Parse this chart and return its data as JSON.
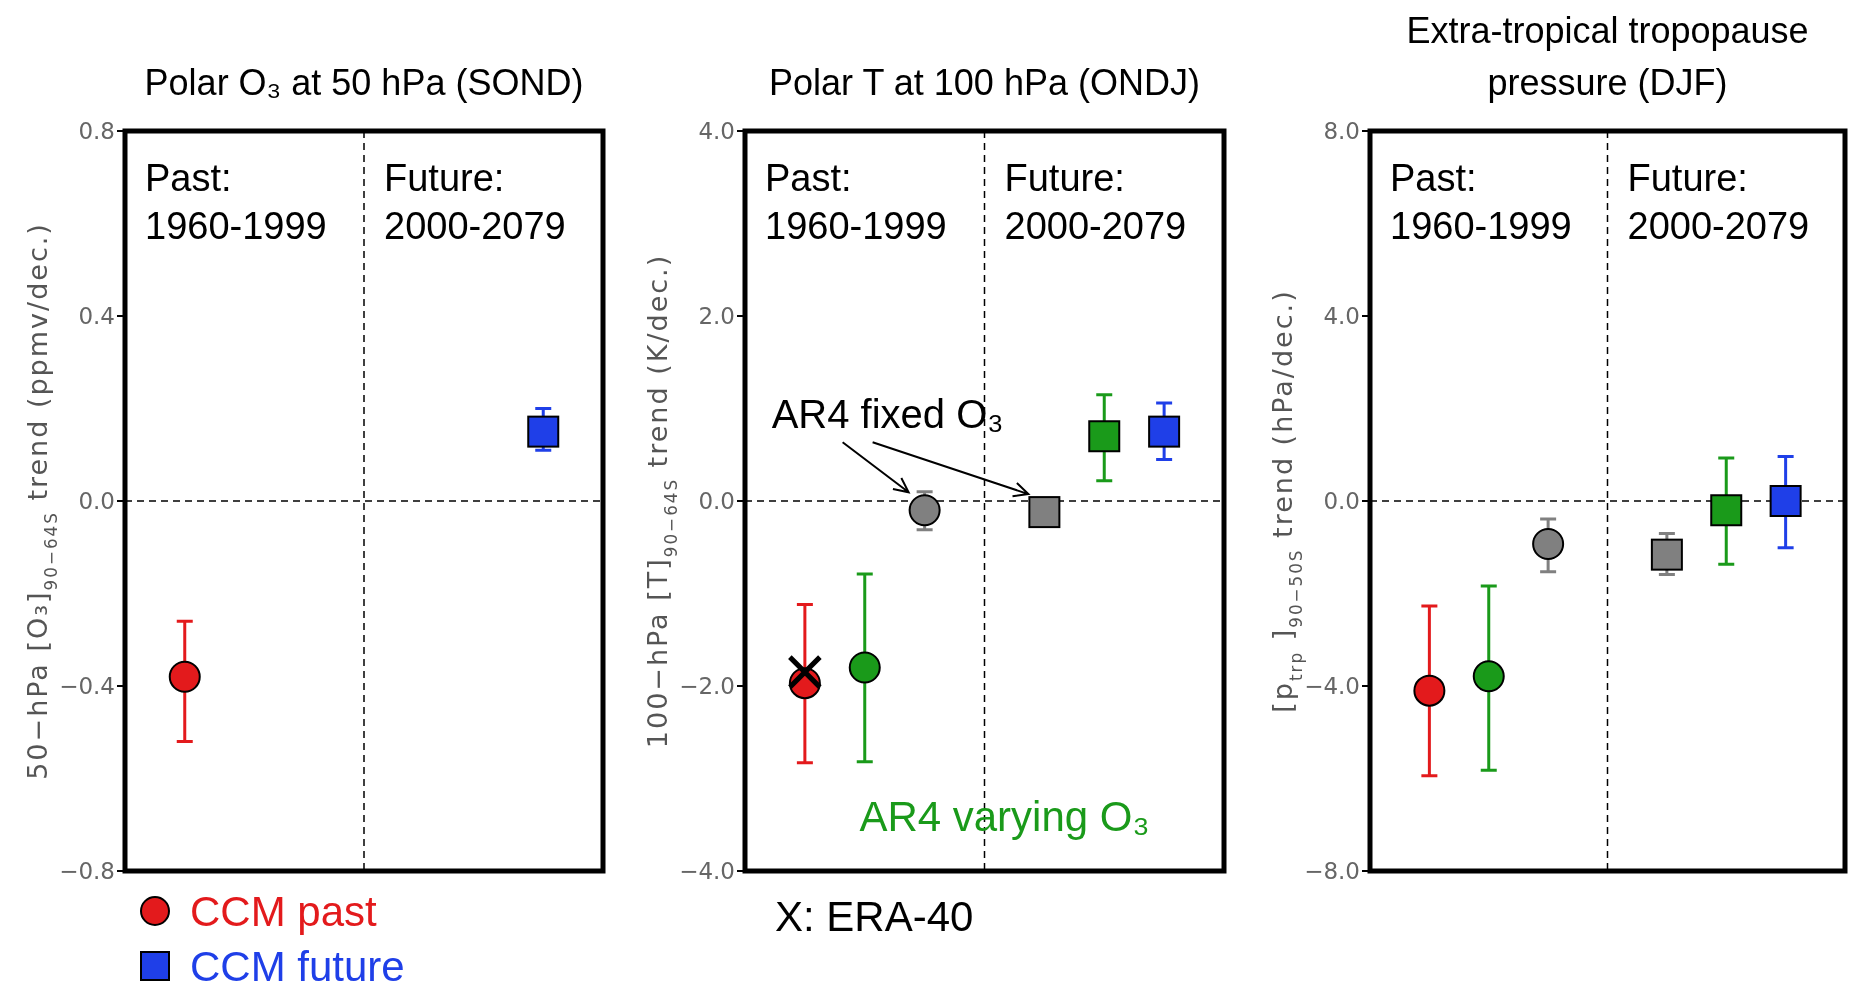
{
  "chart_data": [
    {
      "type": "scatter",
      "title": "Polar O₃ at 50 hPa (SOND)",
      "ylabel": "50−hPa [O₃]$_{90−64S}$ trend (ppmv/dec.)",
      "categories": [
        null,
        null,
        null,
        null,
        null,
        null,
        null
      ],
      "ylim": [
        -0.8,
        0.8
      ],
      "yticks": [
        {
          "value": -0.8,
          "label": "−0.8"
        },
        {
          "value": -0.4,
          "label": "−0.4"
        },
        {
          "value": 0,
          "label": "0.0"
        },
        {
          "value": 0.4,
          "label": "0.4"
        },
        {
          "value": 0.8,
          "label": "0.8"
        }
      ],
      "tick_labels": "y",
      "legend": "bottom left",
      "ref_lines": [
        {
          "axis": "y",
          "value": 0,
          "color": "#000000",
          "line_style": "dashed"
        }
      ],
      "annotations": [
        "Past:\n1960-1999",
        "Future:\n2000-2079"
      ],
      "series": [
        {
          "name": "CCM past",
          "marker": "circle",
          "color": "#e31a1c",
          "values": [
            -0.38,
            null,
            null,
            null,
            null,
            null,
            null
          ],
          "errors": [
            [
              -0.52,
              -0.26
            ],
            null,
            null,
            null,
            null,
            null,
            null
          ]
        },
        {
          "name": "CCM future",
          "marker": "square",
          "color": "#1f3fe8",
          "values": [
            null,
            null,
            null,
            null,
            null,
            null,
            0.15
          ],
          "errors": [
            null,
            null,
            null,
            null,
            null,
            null,
            [
              0.11,
              0.2
            ]
          ]
        }
      ]
    },
    {
      "type": "scatter",
      "title": "Polar T at 100 hPa (ONDJ)",
      "ylabel": "100−hPa [T]$_{90−64S}$ trend (K/dec.)",
      "categories": [
        null,
        null,
        null,
        null,
        null,
        null,
        null
      ],
      "ylim": [
        -4,
        4
      ],
      "yticks": [
        {
          "value": -4,
          "label": "−4.0"
        },
        {
          "value": -2,
          "label": "−2.0"
        },
        {
          "value": 0,
          "label": "0.0"
        },
        {
          "value": 2,
          "label": "2.0"
        },
        {
          "value": 4,
          "label": "4.0"
        }
      ],
      "tick_labels": "y",
      "legend": "bottom",
      "ref_lines": [
        {
          "axis": "y",
          "value": 0,
          "color": "#000000",
          "line_style": "dashed"
        }
      ],
      "annotations": [
        "Past:\n1960-1999",
        "Future:\n2000-2079",
        "X: ERA-40",
        "AR4 fixed O₃"
      ],
      "series": [
        {
          "marker": "circle",
          "color": "#e31a1c",
          "values": [
            -1.97,
            null,
            null,
            null,
            null,
            null,
            null
          ],
          "errors": [
            [
              -2.83,
              -1.12
            ],
            null,
            null,
            null,
            null,
            null,
            null
          ]
        },
        {
          "marker": "cross",
          "color": "#000000",
          "values": [
            -1.85,
            null,
            null,
            null,
            null,
            null,
            null
          ]
        },
        {
          "name": "AR4 varying O₃",
          "marker": "circle",
          "color": "#1a9a1a",
          "values": [
            null,
            -1.8,
            null,
            null,
            null,
            null,
            null
          ],
          "errors": [
            null,
            [
              -2.82,
              -0.79
            ],
            null,
            null,
            null,
            null,
            null
          ]
        },
        {
          "marker": "circle",
          "color": "#808080",
          "values": [
            null,
            null,
            -0.1,
            null,
            null,
            null,
            null
          ],
          "errors": [
            null,
            null,
            [
              -0.31,
              0.1
            ],
            null,
            null,
            null,
            null
          ]
        },
        {
          "marker": "square",
          "color": "#808080",
          "values": [
            null,
            null,
            null,
            null,
            -0.12,
            null,
            null
          ]
        },
        {
          "marker": "square",
          "color": "#1a9a1a",
          "values": [
            null,
            null,
            null,
            null,
            null,
            0.7,
            null
          ],
          "errors": [
            null,
            null,
            null,
            null,
            null,
            [
              0.22,
              1.15
            ],
            null
          ]
        },
        {
          "marker": "square",
          "color": "#1f3fe8",
          "values": [
            null,
            null,
            null,
            null,
            null,
            null,
            0.75
          ],
          "errors": [
            null,
            null,
            null,
            null,
            null,
            null,
            [
              0.45,
              1.06
            ]
          ]
        }
      ]
    },
    {
      "type": "scatter",
      "title": "Extra-tropical tropopause pressure (DJF)",
      "ylabel": "[p$_{trp}$]$_{90−50S}$ trend (hPa/dec.)",
      "categories": [
        null,
        null,
        null,
        null,
        null,
        null,
        null
      ],
      "ylim": [
        -8,
        8
      ],
      "yticks": [
        {
          "value": -8,
          "label": "−8.0"
        },
        {
          "value": -4,
          "label": "−4.0"
        },
        {
          "value": 0,
          "label": "0.0"
        },
        {
          "value": 4,
          "label": "4.0"
        },
        {
          "value": 8,
          "label": "8.0"
        }
      ],
      "tick_labels": "y",
      "ref_lines": [
        {
          "axis": "y",
          "value": 0,
          "color": "#000000",
          "line_style": "dashed"
        }
      ],
      "annotations": [
        "Past:\n1960-1999",
        "Future:\n2000-2079"
      ],
      "series": [
        {
          "marker": "circle",
          "color": "#e31a1c",
          "values": [
            -4.1,
            null,
            null,
            null,
            null,
            null,
            null
          ],
          "errors": [
            [
              -5.94,
              -2.27
            ],
            null,
            null,
            null,
            null,
            null,
            null
          ]
        },
        {
          "marker": "circle",
          "color": "#1a9a1a",
          "values": [
            null,
            -3.79,
            null,
            null,
            null,
            null,
            null
          ],
          "errors": [
            null,
            [
              -5.82,
              -1.84
            ],
            null,
            null,
            null,
            null,
            null
          ]
        },
        {
          "marker": "circle",
          "color": "#808080",
          "values": [
            null,
            null,
            -0.93,
            null,
            null,
            null,
            null
          ],
          "errors": [
            null,
            null,
            [
              -1.53,
              -0.39
            ],
            null,
            null,
            null,
            null
          ]
        },
        {
          "marker": "square",
          "color": "#808080",
          "values": [
            null,
            null,
            null,
            null,
            -1.16,
            null,
            null
          ],
          "errors": [
            null,
            null,
            null,
            null,
            [
              -1.59,
              -0.7
            ],
            null,
            null
          ]
        },
        {
          "marker": "square",
          "color": "#1a9a1a",
          "values": [
            null,
            null,
            null,
            null,
            null,
            -0.2,
            null
          ],
          "errors": [
            null,
            null,
            null,
            null,
            null,
            [
              -1.37,
              0.93
            ],
            null
          ]
        },
        {
          "marker": "square",
          "color": "#1f3fe8",
          "values": [
            null,
            null,
            null,
            null,
            null,
            null,
            0
          ],
          "errors": [
            null,
            null,
            null,
            null,
            null,
            null,
            [
              -1.01,
              0.96
            ]
          ]
        }
      ]
    }
  ]
}
